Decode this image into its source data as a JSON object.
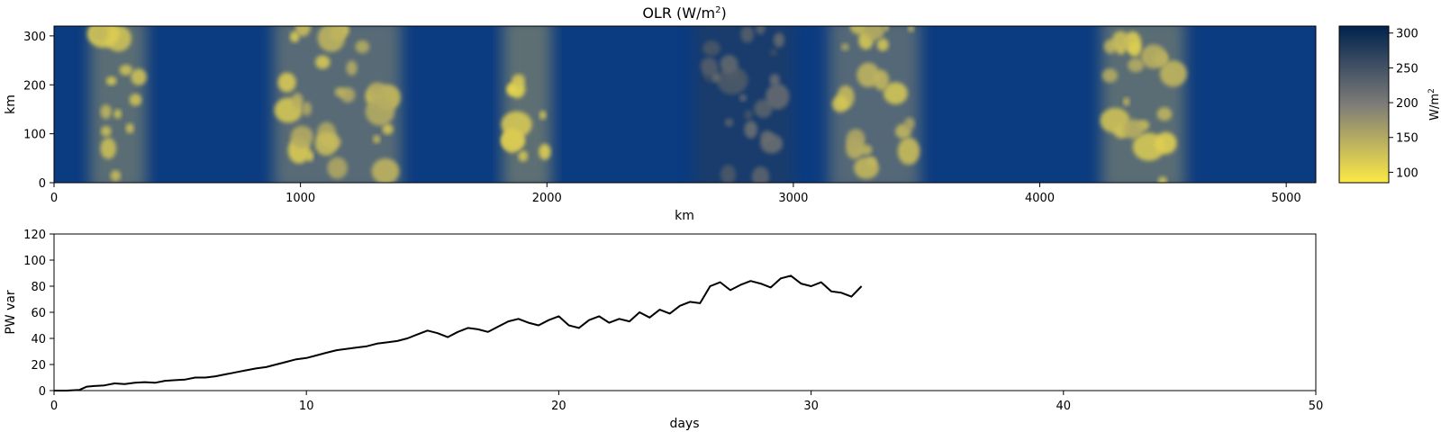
{
  "figure": {
    "title_prefix": "OLR (W/m",
    "title_sup": "2",
    "title_suffix": ")"
  },
  "chart_data": [
    {
      "type": "heatmap",
      "title": "OLR (W/m²)",
      "xlabel": "km",
      "ylabel": "km",
      "xlim": [
        0,
        5120
      ],
      "ylim": [
        0,
        320
      ],
      "xticks": [
        "0",
        "1000",
        "2000",
        "3000",
        "4000",
        "5000"
      ],
      "yticks": [
        "0",
        "100",
        "200",
        "300"
      ],
      "colormap": "cividis_r",
      "clim": [
        85,
        310
      ],
      "colorbar": {
        "label": "W/m",
        "label_sup": "2",
        "ticks": [
          "100",
          "150",
          "200",
          "250",
          "300"
        ]
      },
      "colors": {
        "low": "#fde945",
        "mid": "#7d7c78",
        "high": "#00224e"
      },
      "convective_bands_km": [
        {
          "x": 260,
          "width": 230,
          "min_olr": 110
        },
        {
          "x": 1150,
          "width": 520,
          "min_olr": 115
        },
        {
          "x": 1920,
          "width": 200,
          "min_olr": 105
        },
        {
          "x": 2800,
          "width": 400,
          "min_olr": 215
        },
        {
          "x": 3330,
          "width": 370,
          "min_olr": 120
        },
        {
          "x": 4420,
          "width": 340,
          "min_olr": 110
        }
      ]
    },
    {
      "type": "line",
      "xlabel": "days",
      "ylabel": "PW var",
      "xlim": [
        0,
        50
      ],
      "ylim": [
        0,
        120
      ],
      "xticks": [
        "0",
        "10",
        "20",
        "30",
        "40",
        "50"
      ],
      "yticks": [
        "0",
        "20",
        "40",
        "60",
        "80",
        "100",
        "120"
      ],
      "color": "#000000",
      "grid": false,
      "series": [
        {
          "x": [
            0,
            0.5,
            1.0,
            1.3,
            1.6,
            2.0,
            2.4,
            2.8,
            3.2,
            3.6,
            4.0,
            4.4,
            4.8,
            5.2,
            5.6,
            6.0,
            6.4,
            6.8,
            7.2,
            7.6,
            8.0,
            8.4,
            8.8,
            9.2,
            9.6,
            10.0,
            10.4,
            10.8,
            11.2,
            11.6,
            12.0,
            12.4,
            12.8,
            13.2,
            13.6,
            14.0,
            14.4,
            14.8,
            15.2,
            15.6,
            16.0,
            16.4,
            16.8,
            17.2,
            17.6,
            18.0,
            18.4,
            18.8,
            19.2,
            19.6,
            20.0,
            20.4,
            20.8,
            21.2,
            21.6,
            22.0,
            22.4,
            22.8,
            23.2,
            23.6,
            24.0,
            24.4,
            24.8,
            25.2,
            25.6,
            26.0,
            26.4,
            26.8,
            27.2,
            27.6,
            28.0,
            28.4,
            28.8,
            29.2,
            29.6,
            30.0,
            30.4,
            30.8,
            31.2,
            31.6,
            32.0
          ],
          "y": [
            0,
            0,
            0.5,
            3,
            3.5,
            4,
            5.5,
            5,
            6,
            6.5,
            6,
            7.5,
            8,
            8.5,
            10,
            10,
            11,
            12.5,
            14,
            15.5,
            17,
            18,
            20,
            22,
            24,
            25,
            27,
            29,
            31,
            32,
            33,
            34,
            36,
            37,
            38,
            40,
            43,
            46,
            44,
            41,
            45,
            48,
            47,
            45,
            49,
            53,
            55,
            52,
            50,
            54,
            57,
            50,
            48,
            54,
            57,
            52,
            55,
            53,
            60,
            56,
            62,
            59,
            65,
            68,
            67,
            80,
            83,
            77,
            81,
            84,
            82,
            79,
            86,
            88,
            82,
            80,
            83,
            76,
            75,
            72,
            80
          ]
        }
      ]
    }
  ]
}
